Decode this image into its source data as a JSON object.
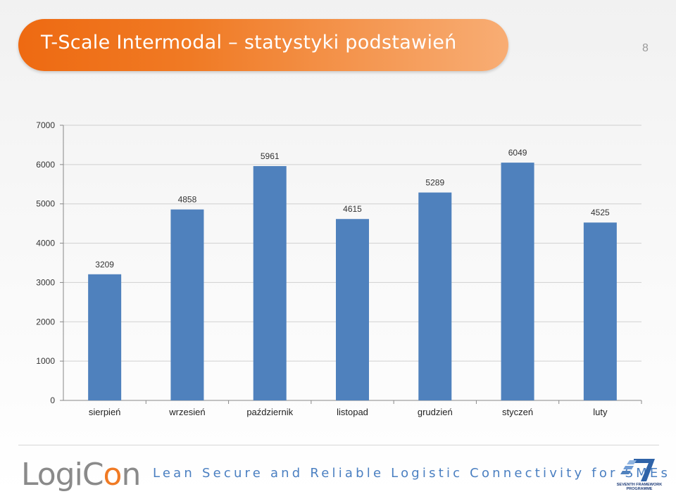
{
  "header": {
    "title": "T-Scale Intermodal – statystyki podstawień",
    "slide_number": "8"
  },
  "chart_data": {
    "type": "bar",
    "categories": [
      "sierpień",
      "wrzesień",
      "październik",
      "listopad",
      "grudzień",
      "styczeń",
      "luty"
    ],
    "values": [
      3209,
      4858,
      5961,
      4615,
      5289,
      6049,
      4525
    ],
    "ylim": [
      0,
      7000
    ],
    "yticks": [
      0,
      1000,
      2000,
      3000,
      4000,
      5000,
      6000,
      7000
    ],
    "grid": true,
    "legend": "none",
    "bar_color": "#4f81bd",
    "data_labels": true
  },
  "footer": {
    "logo_part1": "LogiC",
    "logo_accent": "o",
    "logo_part2": "n",
    "tagline": "Lean Secure and Reliable Logistic Connectivity for SMEs",
    "badge_icon": "fp7-logo-icon",
    "badge_caption_1": "SEVENTH FRAMEWORK",
    "badge_caption_2": "PROGRAMME"
  }
}
